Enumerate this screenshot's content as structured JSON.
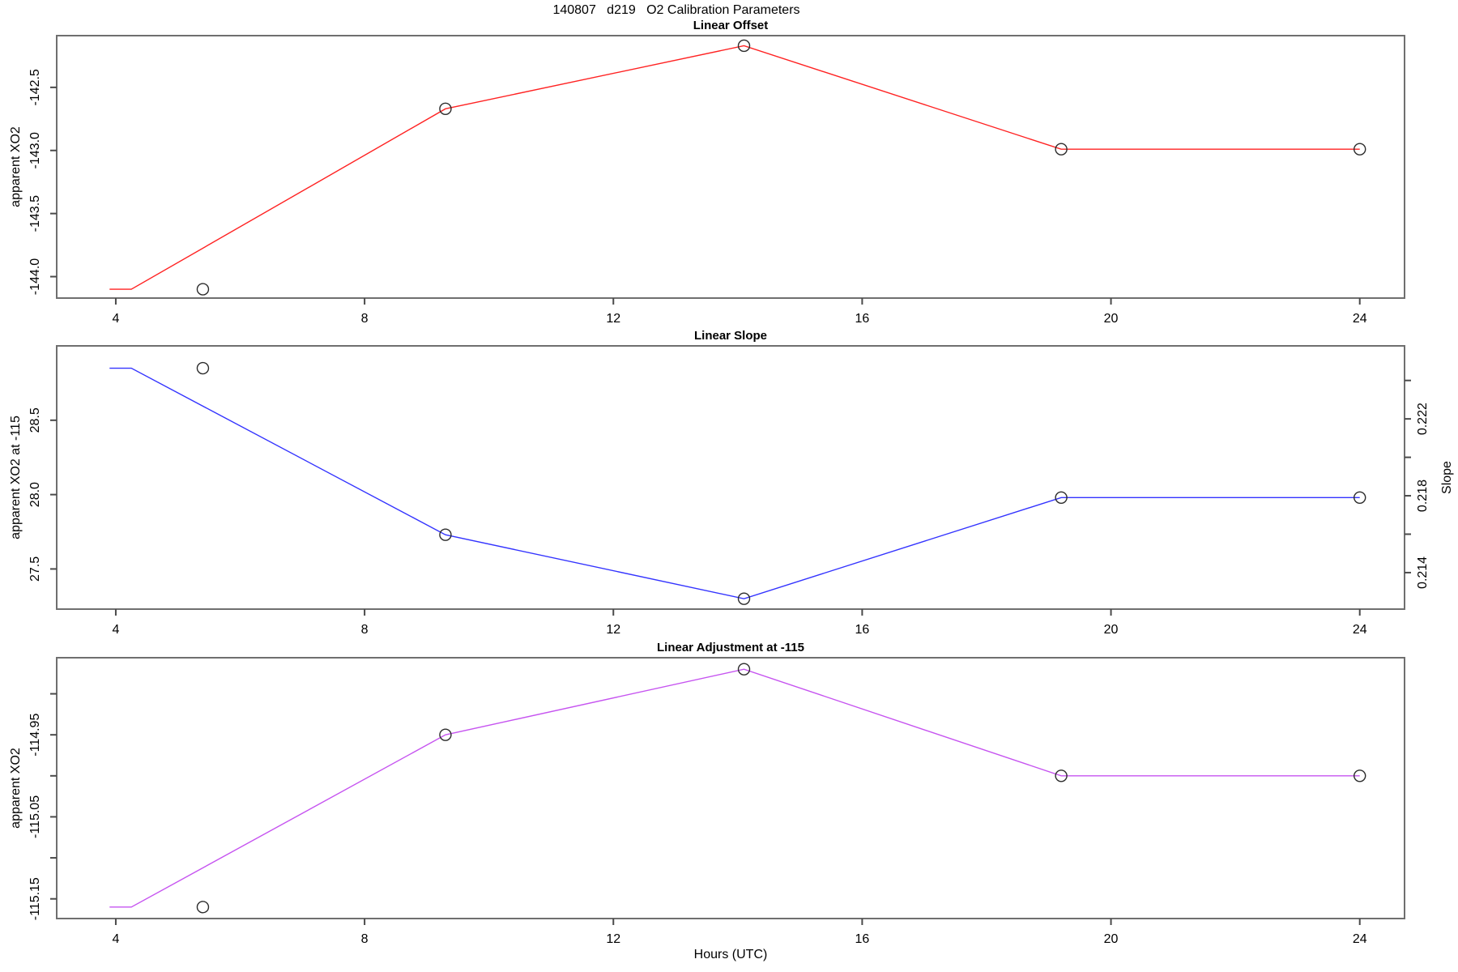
{
  "title": "140807   d219   O2 Calibration Parameters",
  "colors": {
    "frame": "#6f6f6f",
    "tick": "#4a4a4a",
    "text": "#000000",
    "marker": "#2b2b2b",
    "line_offset": "#ff2222",
    "line_slope": "#3333ff",
    "line_adjustment": "#c654f0"
  },
  "chart_data": [
    {
      "type": "line",
      "title": "Linear Offset",
      "xlabel": "",
      "ylabel": "apparent XO2",
      "xlim": [
        3.05,
        24.72
      ],
      "ylim": [
        -144.17,
        -142.09
      ],
      "grid": "off",
      "legend": "none",
      "xticks": [
        4,
        8,
        12,
        16,
        20,
        24
      ],
      "xtick_labels": [
        "4",
        "8",
        "12",
        "16",
        "20",
        "24"
      ],
      "yticks": [
        -142.5,
        -143.0,
        -143.5,
        -144.0
      ],
      "ytick_labels": [
        "-142.5",
        "-143.0",
        "-143.5",
        "-144.0"
      ],
      "line_color": "#ff2222",
      "series": [
        {
          "name": "offset-line",
          "style": "line",
          "x": [
            3.9,
            4.25,
            9.3,
            14.1,
            19.2,
            24.0
          ],
          "y": [
            -144.1,
            -144.1,
            -142.67,
            -142.17,
            -142.99,
            -142.99
          ]
        },
        {
          "name": "offset-points",
          "style": "points",
          "x": [
            5.4,
            9.3,
            14.1,
            19.2,
            24.0
          ],
          "y": [
            -144.1,
            -142.67,
            -142.17,
            -142.99,
            -142.99
          ]
        }
      ]
    },
    {
      "type": "line",
      "title": "Linear Slope",
      "xlabel": "",
      "ylabel": "apparent XO2 at -115",
      "ylabel_right": "Slope",
      "xlim": [
        3.05,
        24.72
      ],
      "ylim": [
        27.23,
        29.0
      ],
      "right_ylim": [
        0.2121,
        0.2258
      ],
      "grid": "off",
      "legend": "none",
      "xticks": [
        4,
        8,
        12,
        16,
        20,
        24
      ],
      "xtick_labels": [
        "4",
        "8",
        "12",
        "16",
        "20",
        "24"
      ],
      "yticks": [
        28.5,
        28.0,
        27.5
      ],
      "ytick_labels": [
        "28.5",
        "28.0",
        "27.5"
      ],
      "right_yticks": [
        0.224,
        0.222,
        0.22,
        0.218,
        0.216,
        0.214
      ],
      "right_ytick_labels": [
        "",
        "0.222",
        "",
        "0.218",
        "",
        "0.214"
      ],
      "line_color": "#3333ff",
      "series": [
        {
          "name": "slope-line",
          "style": "line",
          "x": [
            3.9,
            4.25,
            9.3,
            14.1,
            19.2,
            24.0
          ],
          "y": [
            28.85,
            28.85,
            27.73,
            27.3,
            27.98,
            27.98
          ]
        },
        {
          "name": "slope-points",
          "style": "points",
          "x": [
            5.4,
            9.3,
            14.1,
            19.2,
            24.0
          ],
          "y": [
            28.85,
            27.73,
            27.3,
            27.98,
            27.98
          ]
        }
      ]
    },
    {
      "type": "line",
      "title": "Linear Adjustment at -115",
      "xlabel": "Hours (UTC)",
      "ylabel": "apparent XO2",
      "xlim": [
        3.05,
        24.72
      ],
      "ylim": [
        -115.174,
        -114.856
      ],
      "grid": "off",
      "legend": "none",
      "xticks": [
        4,
        8,
        12,
        16,
        20,
        24
      ],
      "xtick_labels": [
        "4",
        "8",
        "12",
        "16",
        "20",
        "24"
      ],
      "yticks": [
        -114.9,
        -114.95,
        -115.0,
        -115.05,
        -115.1,
        -115.15
      ],
      "ytick_labels": [
        "",
        "-114.95",
        "",
        "-115.05",
        "",
        "-115.15"
      ],
      "line_color": "#c654f0",
      "series": [
        {
          "name": "adjustment-line",
          "style": "line",
          "x": [
            3.9,
            4.25,
            9.3,
            14.1,
            19.2,
            24.0
          ],
          "y": [
            -115.16,
            -115.16,
            -114.95,
            -114.87,
            -115.0,
            -115.0
          ]
        },
        {
          "name": "adjustment-points",
          "style": "points",
          "x": [
            5.4,
            9.3,
            14.1,
            19.2,
            24.0
          ],
          "y": [
            -115.16,
            -114.95,
            -114.87,
            -115.0,
            -115.0
          ]
        }
      ]
    }
  ]
}
